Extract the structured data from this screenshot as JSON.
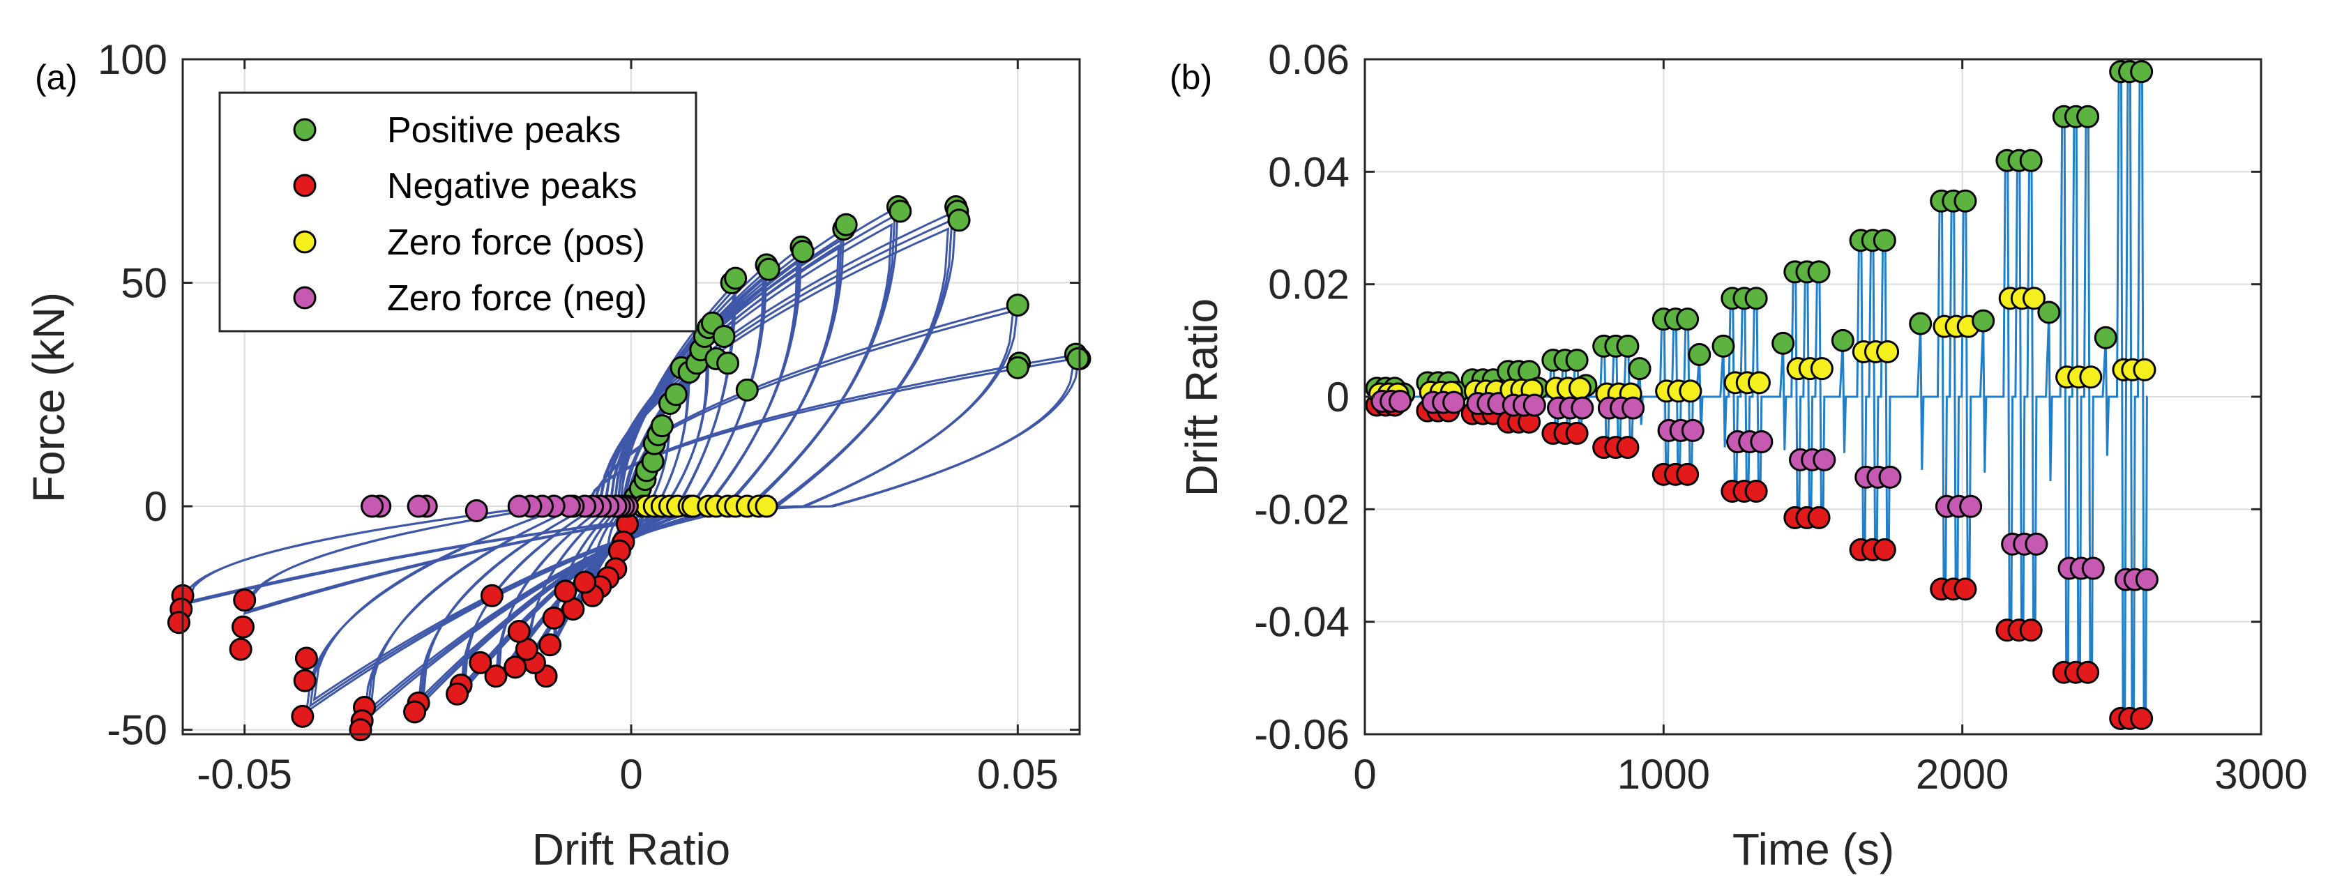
{
  "colors": {
    "positive_peaks": "#5db33f",
    "negative_peaks": "#e31a1c",
    "zero_force_pos": "#f5ef1e",
    "zero_force_neg": "#c65ab3",
    "hysteresis_line": "#3f57a8",
    "history_line": "#1f7fc8"
  },
  "chart_data": [
    {
      "type": "line",
      "panel_label": "(a)",
      "title": "",
      "xlabel": "Drift Ratio",
      "ylabel": "Force (kN)",
      "xlim": [
        -0.058,
        0.058
      ],
      "ylim": [
        -51,
        100
      ],
      "x_ticks": [
        -0.05,
        0,
        0.05
      ],
      "x_tick_labels": [
        "-0.05",
        "0",
        "0.05"
      ],
      "y_ticks": [
        -50,
        0,
        50,
        100
      ],
      "y_tick_labels": [
        "-50",
        "0",
        "50",
        "100"
      ],
      "grid": true,
      "legend_position": "top-left",
      "legend": [
        "Positive peaks",
        "Negative peaks",
        "Zero force (pos)",
        "Zero force (neg)"
      ],
      "hysteresis_cycles": [
        {
          "amp": 0.0015,
          "fpos": 4,
          "fneg": -4,
          "repeats": 3
        },
        {
          "amp": 0.003,
          "fpos": 10,
          "fneg": -10,
          "repeats": 3
        },
        {
          "amp": 0.005,
          "fpos": 20,
          "fneg": -17,
          "repeats": 3
        },
        {
          "amp": 0.0075,
          "fpos": 30,
          "fneg": -25,
          "repeats": 3
        },
        {
          "amp": 0.01,
          "fpos": 33,
          "fneg": -31,
          "repeats": 3
        },
        {
          "amp": 0.0135,
          "fpos": 50,
          "fneg": -36,
          "repeats": 3
        },
        {
          "amp": 0.0175,
          "fpos": 54,
          "fneg": -40,
          "repeats": 3
        },
        {
          "amp": 0.022,
          "fpos": 58,
          "fneg": -42,
          "repeats": 3
        },
        {
          "amp": 0.0275,
          "fpos": 62,
          "fneg": -45,
          "repeats": 3
        },
        {
          "amp": 0.0345,
          "fpos": 67,
          "fneg": -48,
          "repeats": 3
        },
        {
          "amp": 0.042,
          "fpos": 66,
          "fneg": -46,
          "repeats": 3
        },
        {
          "amp": 0.05,
          "fpos": 45,
          "fneg": -24,
          "repeats": 2
        },
        {
          "amp": 0.058,
          "fpos": 34,
          "fneg": -22,
          "repeats": 2
        }
      ],
      "series": [
        {
          "name": "Positive peaks",
          "x": [
            0.0005,
            0.0012,
            0.0018,
            0.002,
            0.0028,
            0.003,
            0.0035,
            0.004,
            0.005,
            0.0058,
            0.0065,
            0.0075,
            0.0085,
            0.009,
            0.0095,
            0.01,
            0.0105,
            0.011,
            0.012,
            0.0125,
            0.013,
            0.0135,
            0.015,
            0.0175,
            0.0178,
            0.022,
            0.0222,
            0.0275,
            0.0278,
            0.0345,
            0.0348,
            0.042,
            0.0422,
            0.0424,
            0.05,
            0.0502,
            0.05,
            0.0575,
            0.058,
            0.0578
          ],
          "y": [
            2,
            4,
            6,
            8,
            10,
            14,
            16,
            18,
            23,
            25,
            31,
            30,
            32,
            35,
            38,
            40,
            41,
            33,
            38,
            32,
            50,
            51,
            26,
            54,
            53,
            58,
            57,
            62,
            63,
            67,
            66,
            67,
            66,
            64,
            45,
            32,
            31,
            34,
            33,
            33
          ]
        },
        {
          "name": "Negative peaks",
          "x": [
            -0.0005,
            -0.001,
            -0.0015,
            -0.002,
            -0.003,
            -0.004,
            -0.005,
            -0.006,
            -0.0075,
            -0.0085,
            -0.01,
            -0.0105,
            -0.011,
            -0.0125,
            -0.0135,
            -0.0145,
            -0.015,
            -0.0175,
            -0.018,
            -0.0195,
            -0.022,
            -0.0225,
            -0.0275,
            -0.028,
            -0.0345,
            -0.0348,
            -0.035,
            -0.042,
            -0.0422,
            -0.0425,
            -0.05,
            -0.0502,
            -0.0505,
            -0.058,
            -0.0582,
            -0.0585
          ],
          "y": [
            -4,
            -8,
            -10,
            -14,
            -16,
            -18,
            -20,
            -17,
            -23,
            -19,
            -25,
            -31,
            -38,
            -35,
            -32,
            -28,
            -36,
            -38,
            -20,
            -35,
            -40,
            -42,
            -44,
            -46,
            -45,
            -48,
            -50,
            -34,
            -39,
            -47,
            -21,
            -27,
            -32,
            -20,
            -23,
            -26
          ]
        },
        {
          "name": "Zero force (pos)",
          "x": [
            0.0015,
            0.002,
            0.003,
            0.004,
            0.005,
            0.006,
            0.0075,
            0.008,
            0.01,
            0.011,
            0.0125,
            0.0135,
            0.015,
            0.0165,
            0.0175
          ],
          "y": [
            0,
            0,
            0,
            0,
            0,
            0,
            0,
            0,
            0,
            0,
            0,
            0,
            0,
            0,
            0
          ]
        },
        {
          "name": "Zero force (neg)",
          "x": [
            -0.0005,
            -0.001,
            -0.0015,
            -0.002,
            -0.003,
            -0.004,
            -0.005,
            -0.006,
            -0.0075,
            -0.008,
            -0.01,
            -0.0115,
            -0.013,
            -0.0145,
            -0.02,
            -0.0265,
            -0.0275,
            -0.0325,
            -0.0335
          ],
          "y": [
            0,
            0,
            0,
            0,
            0,
            0,
            0,
            0,
            0,
            0,
            0,
            0,
            0,
            0,
            -1,
            0,
            0,
            0,
            0
          ]
        }
      ]
    },
    {
      "type": "line",
      "panel_label": "(b)",
      "title": "",
      "xlabel": "Time (s)",
      "ylabel": "Drift Ratio",
      "xlim": [
        0,
        3000
      ],
      "ylim": [
        -0.06,
        0.06
      ],
      "x_ticks": [
        0,
        1000,
        2000,
        3000
      ],
      "x_tick_labels": [
        "0",
        "1000",
        "2000",
        "3000"
      ],
      "y_ticks": [
        -0.06,
        -0.04,
        -0.02,
        0,
        0.02,
        0.04,
        0.06
      ],
      "y_tick_labels": [
        "-0.06",
        "-0.04",
        "-0.02",
        "0",
        "0.02",
        "0.04",
        "0.06"
      ],
      "grid": true,
      "legend_position": "none",
      "groups": [
        {
          "t": [
            40,
            70,
            100
          ],
          "pos": 0.0015,
          "neg": -0.0015,
          "zpos": 0.0005,
          "zneg": -0.0008,
          "check_t": 130,
          "check_pos": 0.0005,
          "check_neg": -0.0005
        },
        {
          "t": [
            210,
            245,
            280
          ],
          "pos": 0.0025,
          "neg": -0.0025,
          "zpos": 0.0008,
          "zneg": -0.001,
          "check_t": 310,
          "check_pos": 0.0008,
          "check_neg": -0.0008
        },
        {
          "t": [
            360,
            395,
            430
          ],
          "pos": 0.003,
          "neg": -0.003,
          "zpos": 0.001,
          "zneg": -0.0012,
          "check_t": 460,
          "check_pos": 0.001,
          "check_neg": -0.001
        },
        {
          "t": [
            480,
            515,
            550
          ],
          "pos": 0.0045,
          "neg": -0.0045,
          "zpos": 0.0012,
          "zneg": -0.0015,
          "check_t": 580,
          "check_pos": 0.0015,
          "check_neg": -0.0015
        },
        {
          "t": [
            630,
            670,
            710
          ],
          "pos": 0.0065,
          "neg": -0.0065,
          "zpos": 0.0015,
          "zneg": -0.002,
          "check_t": 740,
          "check_pos": 0.002,
          "check_neg": -0.002
        },
        {
          "t": [
            800,
            840,
            880
          ],
          "pos": 0.009,
          "neg": -0.009,
          "zpos": 0.0005,
          "zneg": -0.002,
          "check_t": 920,
          "check_pos": 0.005,
          "check_neg": -0.005
        },
        {
          "t": [
            1000,
            1040,
            1080
          ],
          "pos": 0.0138,
          "neg": -0.0138,
          "zpos": 0.001,
          "zneg": -0.006,
          "check_t": 1120,
          "check_pos": 0.0075,
          "check_neg": -0.0075
        },
        {
          "t": [
            1230,
            1270,
            1310
          ],
          "pos": 0.0175,
          "neg": -0.0168,
          "zpos": 0.0025,
          "zneg": -0.008,
          "check_t": 1200,
          "check_pos": 0.009,
          "check_neg": -0.009
        },
        {
          "t": [
            1440,
            1480,
            1520
          ],
          "pos": 0.0222,
          "neg": -0.0215,
          "zpos": 0.005,
          "zneg": -0.0112,
          "check_t": 1400,
          "check_pos": 0.0095,
          "check_neg": -0.0095
        },
        {
          "t": [
            1660,
            1700,
            1740
          ],
          "pos": 0.0278,
          "neg": -0.0272,
          "zpos": 0.008,
          "zneg": -0.0143,
          "check_t": 1600,
          "check_pos": 0.01,
          "check_neg": -0.01
        },
        {
          "t": [
            1930,
            1970,
            2010
          ],
          "pos": 0.0348,
          "neg": -0.0342,
          "zpos": 0.0125,
          "zneg": -0.0195,
          "check_t": 1860,
          "check_pos": 0.013,
          "check_neg": -0.013
        },
        {
          "t": [
            2150,
            2190,
            2230
          ],
          "pos": 0.042,
          "neg": -0.0415,
          "zpos": 0.0175,
          "zneg": -0.0262,
          "check_t": 2070,
          "check_pos": 0.0135,
          "check_neg": -0.0135
        },
        {
          "t": [
            2340,
            2380,
            2420
          ],
          "pos": 0.0498,
          "neg": -0.049,
          "zpos": 0.0035,
          "zneg": -0.0305,
          "check_t": 2290,
          "check_pos": 0.015,
          "check_neg": -0.015
        },
        {
          "t": [
            2530,
            2560,
            2600
          ],
          "pos": 0.0578,
          "neg": -0.0572,
          "zpos": 0.0048,
          "zneg": -0.0325,
          "check_t": 2480,
          "check_pos": 0.0105,
          "check_neg": -0.0105
        }
      ]
    }
  ]
}
